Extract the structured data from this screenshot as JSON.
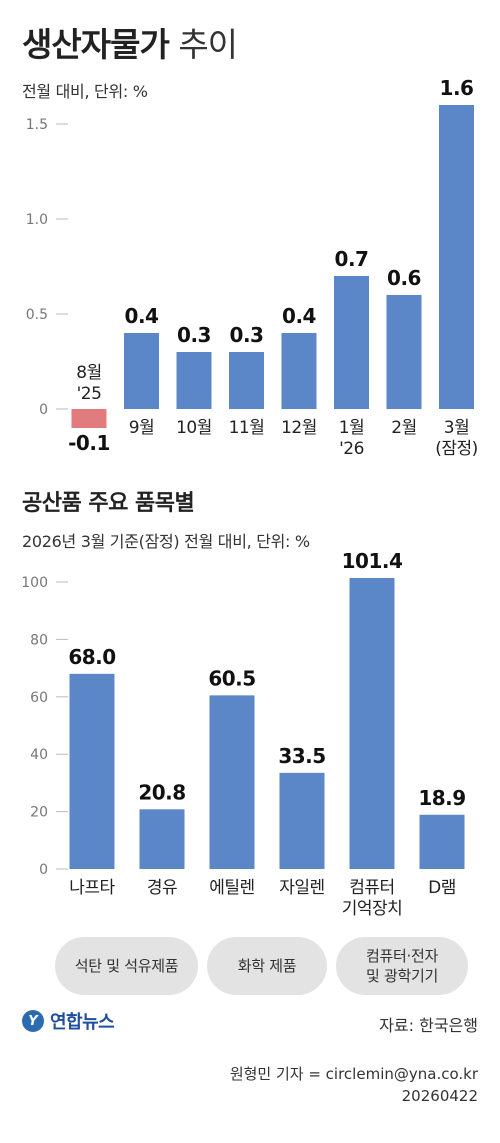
{
  "title": {
    "bold": "생산자물가",
    "light": "추이"
  },
  "subtitle1": "전월 대비, 단위: %",
  "section2_title": "공산품 주요 품목별",
  "subtitle2": "2026년 3월 기준(잠정) 전월 대비, 단위: %",
  "groups": [
    {
      "label": "석탄 및 석유제품",
      "lines": [
        "석탄 및 석유제품"
      ]
    },
    {
      "label": "화학 제품",
      "lines": [
        "화학 제품"
      ]
    },
    {
      "label": "컴퓨터·전자 및 광학기기",
      "lines": [
        "컴퓨터·전자",
        "및 광학기기"
      ]
    }
  ],
  "logo": "연합뉴스",
  "source": "자료: 한국은행",
  "credit": {
    "reporter": "원형민 기자 = circlemin@yna.co.kr",
    "date": "20260422"
  },
  "colors": {
    "positive": "#5b87c9",
    "negative": "#e17b7d"
  },
  "chart_data": [
    {
      "type": "bar",
      "title": "생산자물가 추이",
      "ylabel": "전월 대비, 단위: %",
      "ylim": [
        -0.2,
        1.6
      ],
      "yticks": [
        0,
        0.5,
        1.0,
        1.5
      ],
      "ytick_labels": [
        "0",
        "0.5",
        "1.0",
        "1.5"
      ],
      "categories": [
        "8월 '25",
        "9월",
        "10월",
        "11월",
        "12월",
        "1월 '26",
        "2월",
        "3월 (잠정)"
      ],
      "category_lines": [
        [
          "8월",
          "'25"
        ],
        [
          "9월"
        ],
        [
          "10월"
        ],
        [
          "11월"
        ],
        [
          "12월"
        ],
        [
          "1월",
          "'26"
        ],
        [
          "2월"
        ],
        [
          "3월",
          "(잠정)"
        ]
      ],
      "values": [
        -0.1,
        0.4,
        0.3,
        0.3,
        0.4,
        0.7,
        0.6,
        1.6
      ],
      "value_labels": [
        "-0.1",
        "0.4",
        "0.3",
        "0.3",
        "0.4",
        "0.7",
        "0.6",
        "1.6"
      ],
      "grid": false
    },
    {
      "type": "bar",
      "title": "공산품 주요 품목별",
      "ylabel": "2026년 3월 기준(잠정) 전월 대비, 단위: %",
      "ylim": [
        0,
        110
      ],
      "yticks": [
        0,
        20,
        40,
        60,
        80,
        100
      ],
      "ytick_labels": [
        "0",
        "20",
        "40",
        "60",
        "80",
        "100"
      ],
      "categories": [
        "나프타",
        "경유",
        "에틸렌",
        "자일렌",
        "컴퓨터 기억장치",
        "D램"
      ],
      "category_lines": [
        [
          "나프타"
        ],
        [
          "경유"
        ],
        [
          "에틸렌"
        ],
        [
          "자일렌"
        ],
        [
          "컴퓨터",
          "기억장치"
        ],
        [
          "D램"
        ]
      ],
      "values": [
        68.0,
        20.8,
        60.5,
        33.5,
        101.4,
        18.9
      ],
      "value_labels": [
        "68.0",
        "20.8",
        "60.5",
        "33.5",
        "101.4",
        "18.9"
      ],
      "grid": false
    }
  ]
}
